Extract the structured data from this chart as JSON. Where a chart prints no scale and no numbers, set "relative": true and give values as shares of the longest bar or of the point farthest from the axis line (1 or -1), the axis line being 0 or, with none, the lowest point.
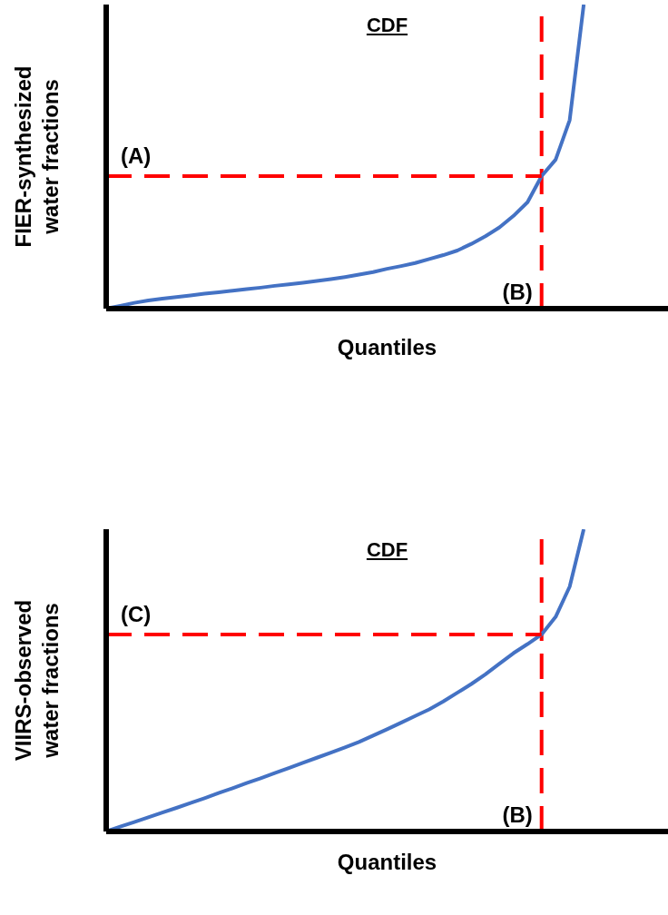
{
  "chart_data": [
    {
      "type": "line",
      "title": "CDF",
      "xlabel": "Quantiles",
      "ylabel": "FIER-synthesized\nwater fractions",
      "relative": true,
      "categories": [
        null,
        null,
        null,
        null,
        null,
        null,
        null,
        null,
        null,
        null,
        null,
        null,
        null,
        null,
        null,
        null,
        null,
        null,
        null,
        null,
        null,
        null,
        null,
        null,
        null,
        null,
        null,
        null,
        null,
        null,
        null,
        null,
        null,
        null,
        null,
        null,
        null,
        null,
        null,
        null,
        null
      ],
      "series": [
        {
          "color": "#4472c4",
          "values": [
            0,
            0.009,
            0.019,
            0.027,
            0.033,
            0.038,
            0.043,
            0.049,
            0.054,
            0.059,
            0.064,
            0.069,
            0.075,
            0.08,
            0.085,
            0.091,
            0.097,
            0.104,
            0.112,
            0.12,
            0.131,
            0.14,
            0.15,
            0.163,
            0.176,
            0.191,
            0.213,
            0.238,
            0.267,
            0.305,
            0.35,
            0.436,
            0.49,
            0.62,
            1,
            null,
            null,
            null,
            null,
            null,
            null
          ]
        },
        {
          "name": "(A)",
          "color": "#ff0000",
          "line_style": "dashed",
          "values": [
            0.436,
            0.436,
            0.436,
            0.436,
            0.436,
            0.436,
            0.436,
            0.436,
            0.436,
            0.436,
            0.436,
            0.436,
            0.436,
            0.436,
            0.436,
            0.436,
            0.436,
            0.436,
            0.436,
            0.436,
            0.436,
            0.436,
            0.436,
            0.436,
            0.436,
            0.436,
            0.436,
            0.436,
            0.436,
            0.436,
            0.436,
            0.436,
            null,
            null,
            null,
            null,
            null,
            null,
            null,
            null,
            null
          ]
        }
      ],
      "annotations": [
        "(B)"
      ]
    },
    {
      "type": "line",
      "title": "CDF",
      "xlabel": "Quantiles",
      "ylabel": "VIIRS-observed\nwater fractions",
      "relative": true,
      "categories": [
        null,
        null,
        null,
        null,
        null,
        null,
        null,
        null,
        null,
        null,
        null,
        null,
        null,
        null,
        null,
        null,
        null,
        null,
        null,
        null,
        null,
        null,
        null,
        null,
        null,
        null,
        null,
        null,
        null,
        null,
        null,
        null,
        null,
        null,
        null,
        null,
        null,
        null,
        null,
        null,
        null
      ],
      "series": [
        {
          "color": "#4472c4",
          "values": [
            0,
            0.016,
            0.031,
            0.047,
            0.063,
            0.078,
            0.094,
            0.11,
            0.127,
            0.143,
            0.16,
            0.176,
            0.193,
            0.21,
            0.227,
            0.244,
            0.261,
            0.278,
            0.296,
            0.317,
            0.338,
            0.36,
            0.382,
            0.404,
            0.43,
            0.459,
            0.488,
            0.52,
            0.555,
            0.59,
            0.62,
            0.652,
            0.71,
            0.81,
            1,
            null,
            null,
            null,
            null,
            null,
            null
          ]
        },
        {
          "name": "(C)",
          "color": "#ff0000",
          "line_style": "dashed",
          "values": [
            0.652,
            0.652,
            0.652,
            0.652,
            0.652,
            0.652,
            0.652,
            0.652,
            0.652,
            0.652,
            0.652,
            0.652,
            0.652,
            0.652,
            0.652,
            0.652,
            0.652,
            0.652,
            0.652,
            0.652,
            0.652,
            0.652,
            0.652,
            0.652,
            0.652,
            0.652,
            0.652,
            0.652,
            0.652,
            0.652,
            0.652,
            0.652,
            null,
            null,
            null,
            null,
            null,
            null,
            null,
            null,
            null
          ]
        }
      ],
      "annotations": [
        "(B)"
      ]
    }
  ]
}
